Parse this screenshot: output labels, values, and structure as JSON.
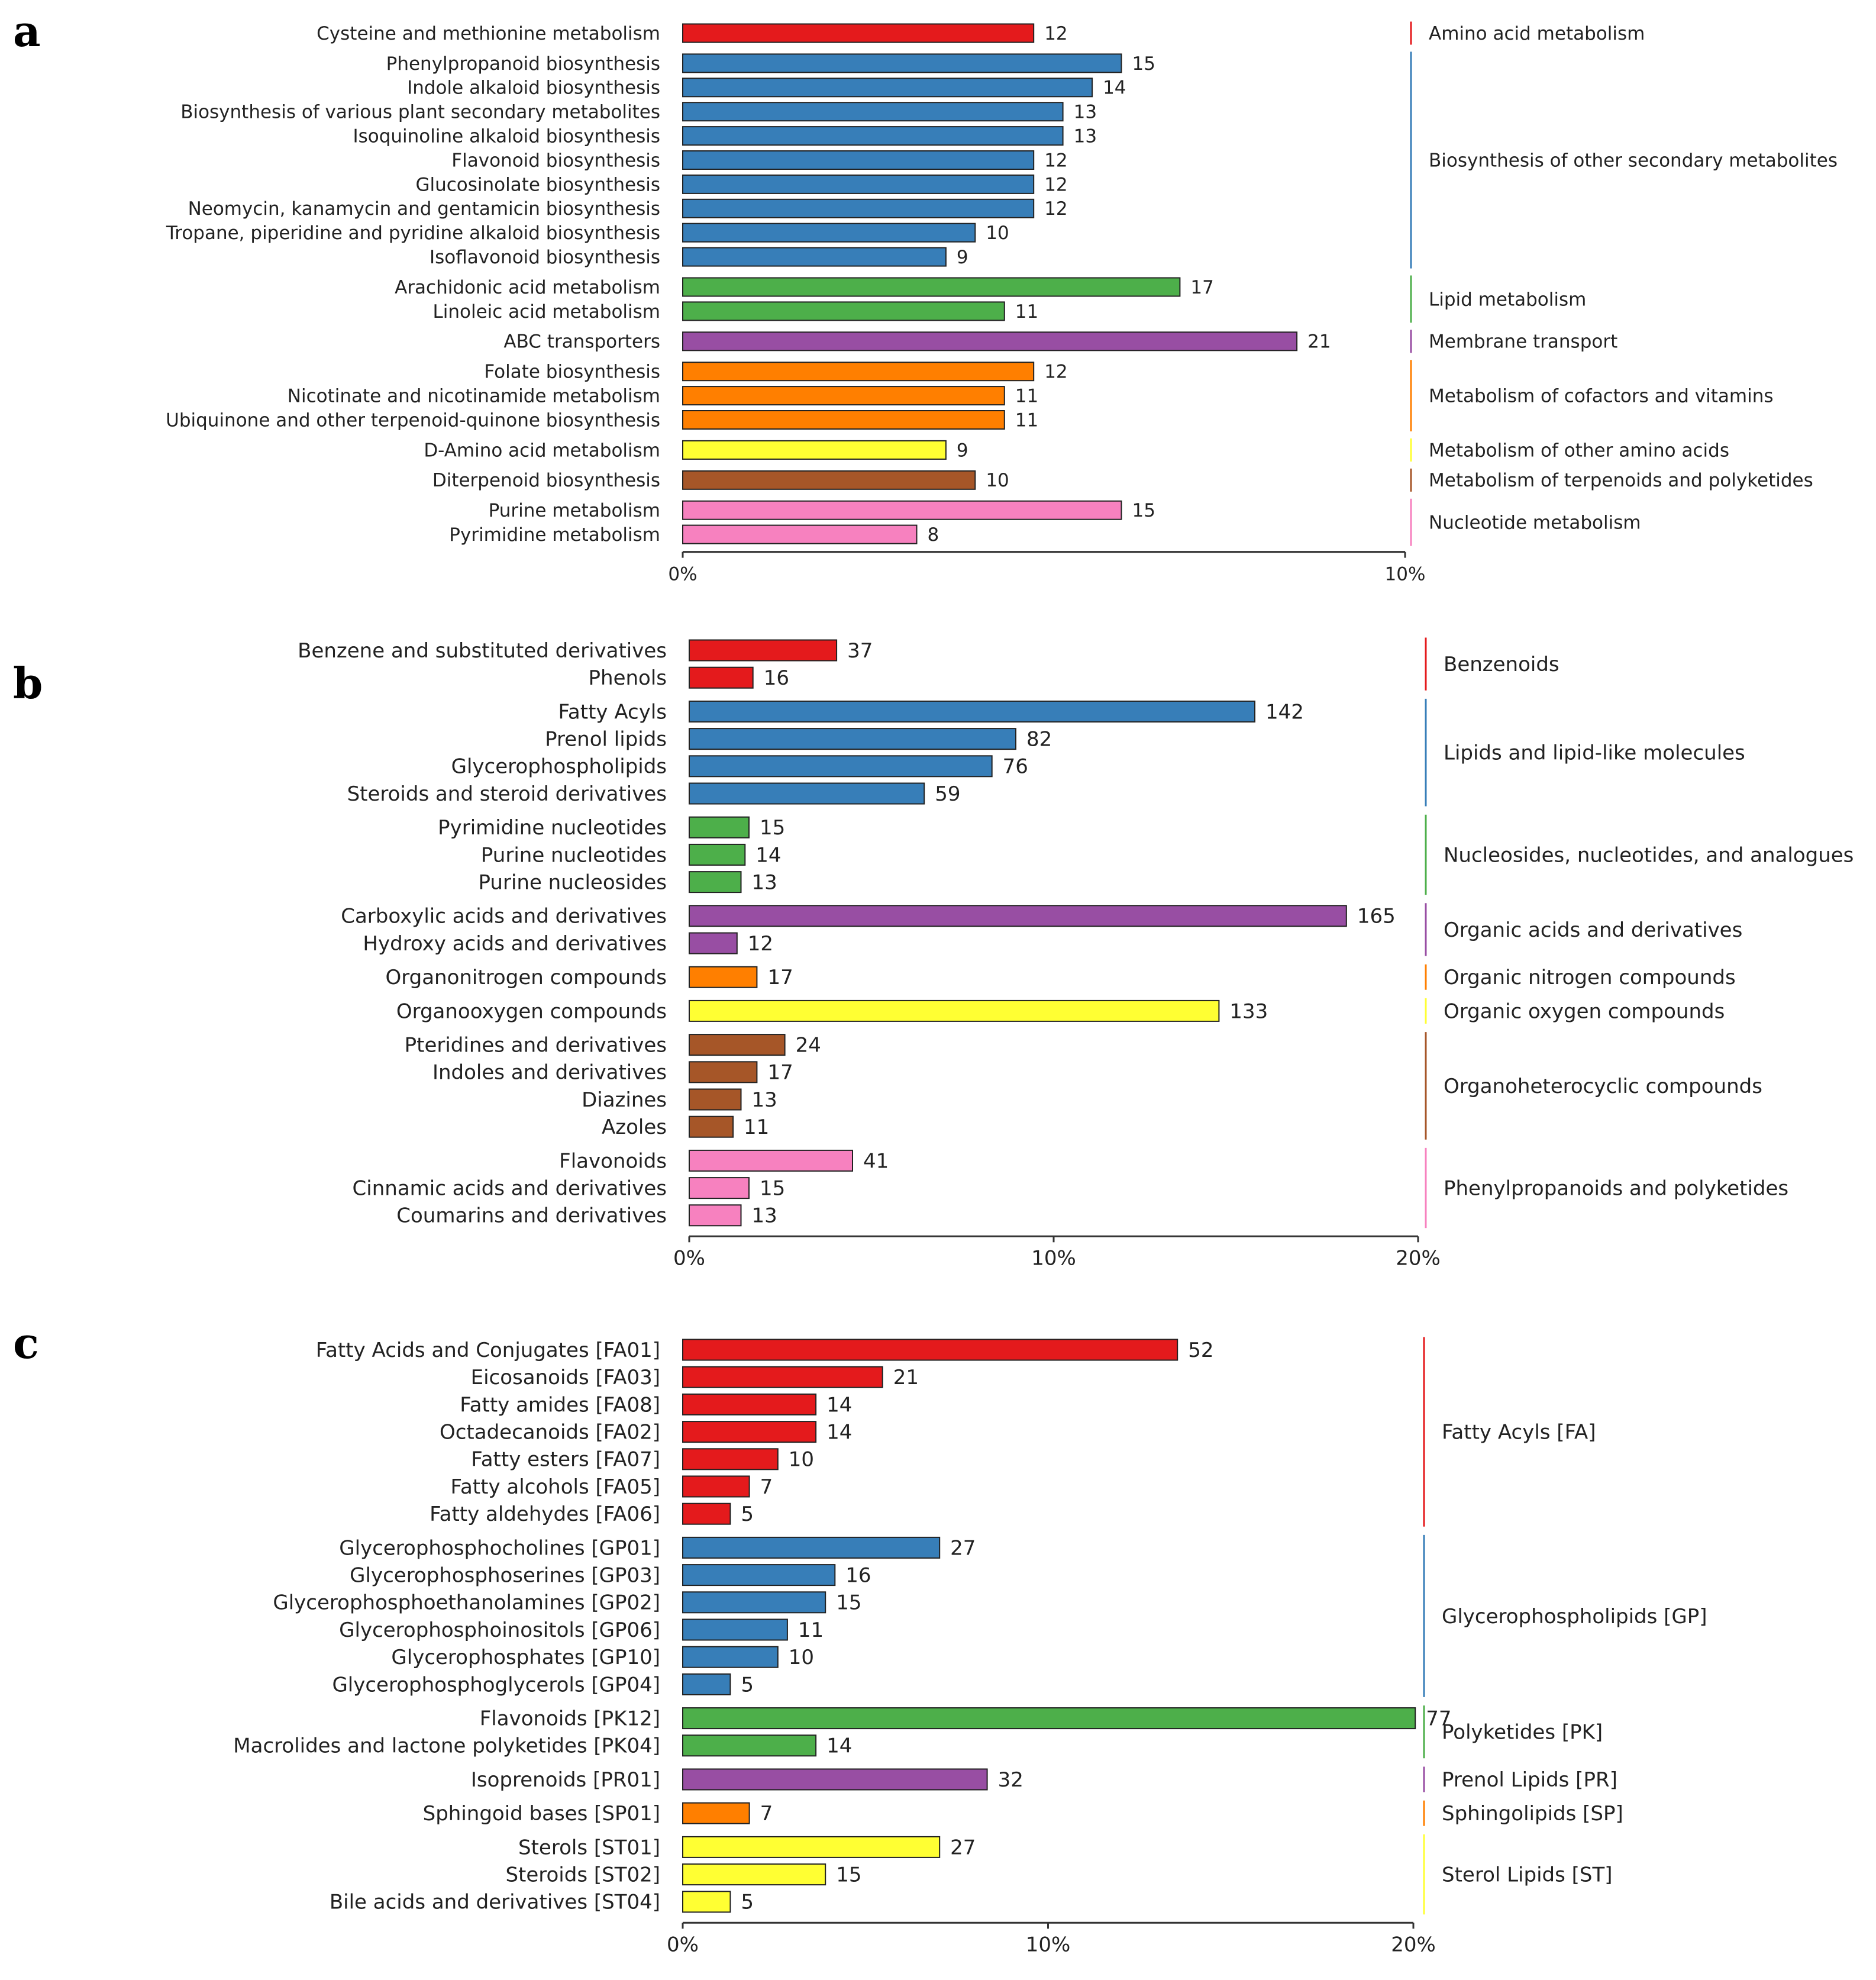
{
  "chart_data": [
    {
      "panel": "a",
      "type": "bar",
      "orientation": "horizontal",
      "xlim": [
        0,
        10
      ],
      "xticks": [
        "0%",
        "10%"
      ],
      "groups": [
        {
          "name": "Amino acid metabolism",
          "color": "#e41a1c",
          "items": [
            {
              "label": "Cysteine and methionine metabolism",
              "value": 12
            }
          ]
        },
        {
          "name": "Biosynthesis of other secondary metabolites",
          "color": "#377eb8",
          "items": [
            {
              "label": "Phenylpropanoid biosynthesis",
              "value": 15
            },
            {
              "label": "Indole alkaloid biosynthesis",
              "value": 14
            },
            {
              "label": "Biosynthesis of various plant secondary metabolites",
              "value": 13
            },
            {
              "label": "Isoquinoline alkaloid biosynthesis",
              "value": 13
            },
            {
              "label": "Flavonoid biosynthesis",
              "value": 12
            },
            {
              "label": "Glucosinolate biosynthesis",
              "value": 12
            },
            {
              "label": "Neomycin, kanamycin and gentamicin biosynthesis",
              "value": 12
            },
            {
              "label": "Tropane, piperidine and pyridine alkaloid biosynthesis",
              "value": 10
            },
            {
              "label": "Isoflavonoid biosynthesis",
              "value": 9
            }
          ]
        },
        {
          "name": "Lipid metabolism",
          "color": "#4daf4a",
          "items": [
            {
              "label": "Arachidonic acid metabolism",
              "value": 17
            },
            {
              "label": "Linoleic acid metabolism",
              "value": 11
            }
          ]
        },
        {
          "name": "Membrane transport",
          "color": "#984ea3",
          "items": [
            {
              "label": "ABC transporters",
              "value": 21
            }
          ]
        },
        {
          "name": "Metabolism of cofactors and vitamins",
          "color": "#ff7f00",
          "items": [
            {
              "label": "Folate biosynthesis",
              "value": 12
            },
            {
              "label": "Nicotinate and nicotinamide metabolism",
              "value": 11
            },
            {
              "label": "Ubiquinone and other terpenoid-quinone biosynthesis",
              "value": 11
            }
          ]
        },
        {
          "name": "Metabolism of other amino acids",
          "color": "#ffff33",
          "items": [
            {
              "label": "D-Amino acid metabolism",
              "value": 9
            }
          ]
        },
        {
          "name": "Metabolism of terpenoids and polyketides",
          "color": "#a65628",
          "items": [
            {
              "label": "Diterpenoid biosynthesis",
              "value": 10
            }
          ]
        },
        {
          "name": "Nucleotide metabolism",
          "color": "#f781bf",
          "items": [
            {
              "label": "Purine metabolism",
              "value": 15
            },
            {
              "label": "Pyrimidine metabolism",
              "value": 8
            }
          ]
        }
      ]
    },
    {
      "panel": "b",
      "type": "bar",
      "orientation": "horizontal",
      "xlim": [
        0,
        20
      ],
      "xticks": [
        "0%",
        "10%",
        "20%"
      ],
      "groups": [
        {
          "name": "Benzenoids",
          "color": "#e41a1c",
          "items": [
            {
              "label": "Benzene and substituted derivatives",
              "value": 37
            },
            {
              "label": "Phenols",
              "value": 16
            }
          ]
        },
        {
          "name": "Lipids and lipid-like molecules",
          "color": "#377eb8",
          "items": [
            {
              "label": "Fatty Acyls",
              "value": 142
            },
            {
              "label": "Prenol lipids",
              "value": 82
            },
            {
              "label": "Glycerophospholipids",
              "value": 76
            },
            {
              "label": "Steroids and steroid derivatives",
              "value": 59
            }
          ]
        },
        {
          "name": "Nucleosides, nucleotides, and analogues",
          "color": "#4daf4a",
          "items": [
            {
              "label": "Pyrimidine nucleotides",
              "value": 15
            },
            {
              "label": "Purine nucleotides",
              "value": 14
            },
            {
              "label": "Purine nucleosides",
              "value": 13
            }
          ]
        },
        {
          "name": "Organic acids and derivatives",
          "color": "#984ea3",
          "items": [
            {
              "label": "Carboxylic acids and derivatives",
              "value": 165
            },
            {
              "label": "Hydroxy acids and derivatives",
              "value": 12
            }
          ]
        },
        {
          "name": "Organic nitrogen compounds",
          "color": "#ff7f00",
          "items": [
            {
              "label": "Organonitrogen compounds",
              "value": 17
            }
          ]
        },
        {
          "name": "Organic oxygen compounds",
          "color": "#ffff33",
          "items": [
            {
              "label": "Organooxygen compounds",
              "value": 133
            }
          ]
        },
        {
          "name": "Organoheterocyclic compounds",
          "color": "#a65628",
          "items": [
            {
              "label": "Pteridines and derivatives",
              "value": 24
            },
            {
              "label": "Indoles and derivatives",
              "value": 17
            },
            {
              "label": "Diazines",
              "value": 13
            },
            {
              "label": "Azoles",
              "value": 11
            }
          ]
        },
        {
          "name": "Phenylpropanoids and polyketides",
          "color": "#f781bf",
          "items": [
            {
              "label": "Flavonoids",
              "value": 41
            },
            {
              "label": "Cinnamic acids and derivatives",
              "value": 15
            },
            {
              "label": "Coumarins and derivatives",
              "value": 13
            }
          ]
        }
      ]
    },
    {
      "panel": "c",
      "type": "bar",
      "orientation": "horizontal",
      "xlim": [
        0,
        20
      ],
      "xticks": [
        "0%",
        "10%",
        "20%"
      ],
      "groups": [
        {
          "name": "Fatty Acyls [FA]",
          "color": "#e41a1c",
          "items": [
            {
              "label": "Fatty Acids and Conjugates [FA01]",
              "value": 52
            },
            {
              "label": "Eicosanoids [FA03]",
              "value": 21
            },
            {
              "label": "Fatty amides [FA08]",
              "value": 14
            },
            {
              "label": "Octadecanoids [FA02]",
              "value": 14
            },
            {
              "label": "Fatty esters [FA07]",
              "value": 10
            },
            {
              "label": "Fatty alcohols [FA05]",
              "value": 7
            },
            {
              "label": "Fatty aldehydes [FA06]",
              "value": 5
            }
          ]
        },
        {
          "name": "Glycerophospholipids [GP]",
          "color": "#377eb8",
          "items": [
            {
              "label": "Glycerophosphocholines [GP01]",
              "value": 27
            },
            {
              "label": "Glycerophosphoserines [GP03]",
              "value": 16
            },
            {
              "label": "Glycerophosphoethanolamines [GP02]",
              "value": 15
            },
            {
              "label": "Glycerophosphoinositols [GP06]",
              "value": 11
            },
            {
              "label": "Glycerophosphates [GP10]",
              "value": 10
            },
            {
              "label": "Glycerophosphoglycerols [GP04]",
              "value": 5
            }
          ]
        },
        {
          "name": "Polyketides [PK]",
          "color": "#4daf4a",
          "items": [
            {
              "label": "Flavonoids [PK12]",
              "value": 77
            },
            {
              "label": "Macrolides and lactone polyketides [PK04]",
              "value": 14
            }
          ]
        },
        {
          "name": "Prenol Lipids [PR]",
          "color": "#984ea3",
          "items": [
            {
              "label": "Isoprenoids [PR01]",
              "value": 32
            }
          ]
        },
        {
          "name": "Sphingolipids [SP]",
          "color": "#ff7f00",
          "items": [
            {
              "label": "Sphingoid bases [SP01]",
              "value": 7
            }
          ]
        },
        {
          "name": "Sterol Lipids [ST]",
          "color": "#ffff33",
          "items": [
            {
              "label": "Sterols [ST01]",
              "value": 27
            },
            {
              "label": "Steroids [ST02]",
              "value": 15
            },
            {
              "label": "Bile acids and derivatives [ST04]",
              "value": 5
            }
          ]
        }
      ]
    }
  ]
}
